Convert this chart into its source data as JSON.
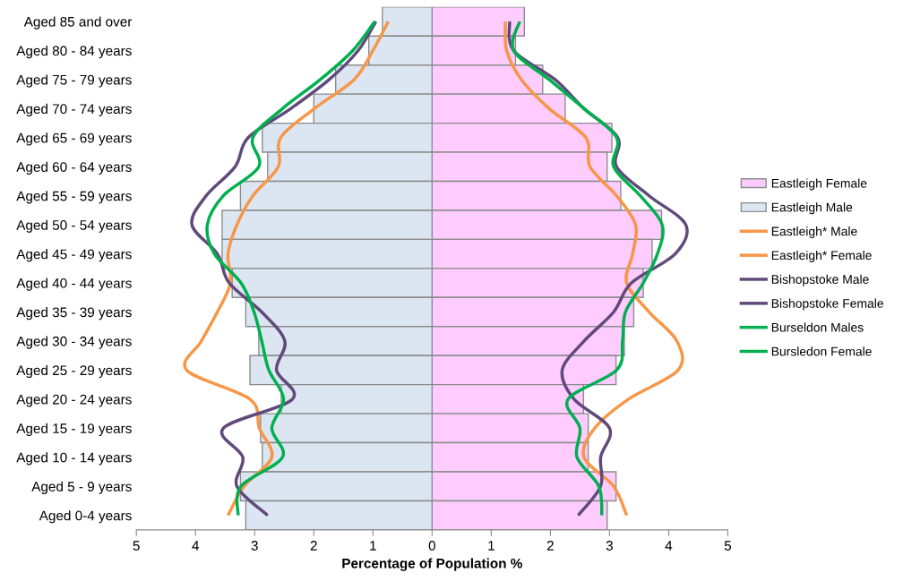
{
  "chart_data": {
    "type": "bar",
    "orientation": "horizontal",
    "xlabel": "Percentage of Population %",
    "categories": [
      "Aged 85 and over",
      "Aged 80 - 84 years",
      "Aged 75 - 79 years",
      "Aged 70 - 74 years",
      "Aged 65 - 69 years",
      "Aged 60 - 64 years",
      "Aged 55 - 59 years",
      "Aged 50 - 54 years",
      "Aged 45 - 49 years",
      "Aged 40 - 44 years",
      "Aged 35 - 39 years",
      "Aged 30 - 34 years",
      "Aged 25 - 29 years",
      "Aged 20 - 24 years",
      "Aged 15 - 19 years",
      "Aged 10 - 14 years",
      "Aged 5 - 9 years",
      "Aged 0-4 years"
    ],
    "xlim": [
      -5,
      5
    ],
    "xticks": [
      {
        "value": -5,
        "label": "5"
      },
      {
        "value": -4,
        "label": "4"
      },
      {
        "value": -3,
        "label": "3"
      },
      {
        "value": -2,
        "label": "2"
      },
      {
        "value": -1,
        "label": "1"
      },
      0,
      1,
      2,
      3,
      4,
      5
    ],
    "grid": false,
    "legend": "right",
    "stacked": true,
    "series": [
      {
        "name": "Eastleigh Female",
        "type": "bar",
        "color": "#ffccff",
        "values": [
          1.56,
          1.41,
          1.87,
          2.25,
          3.04,
          2.96,
          3.19,
          3.88,
          3.72,
          3.57,
          3.41,
          3.25,
          3.11,
          2.56,
          2.64,
          2.64,
          3.11,
          2.96
        ]
      },
      {
        "name": "Eastleigh Male",
        "type": "bar",
        "color": "#dce6f2",
        "values": [
          -0.84,
          -1.07,
          -1.63,
          -2.0,
          -2.87,
          -2.78,
          -3.24,
          -3.55,
          -3.55,
          -3.38,
          -3.15,
          -2.93,
          -3.08,
          -2.55,
          -2.9,
          -2.87,
          -3.24,
          -3.15
        ]
      },
      {
        "name": "Eastleigh* Male",
        "type": "line",
        "color": "#f79646",
        "values": [
          -0.74,
          -1.0,
          -1.32,
          -1.99,
          -2.56,
          -2.6,
          -3.03,
          -3.3,
          -3.45,
          -3.41,
          -3.63,
          -3.9,
          -4.15,
          -3.08,
          -2.92,
          -2.71,
          -3.18,
          -3.45
        ]
      },
      {
        "name": "Eastleigh* Female",
        "type": "line",
        "color": "#f79646",
        "values": [
          1.24,
          1.26,
          1.51,
          1.98,
          2.6,
          2.67,
          3.12,
          3.44,
          3.39,
          3.29,
          3.67,
          4.14,
          4.16,
          3.32,
          2.75,
          2.57,
          3.07,
          3.29
        ]
      },
      {
        "name": "Bishopstoke Male",
        "type": "line",
        "color": "#604a7b",
        "values": [
          -0.95,
          -1.25,
          -1.74,
          -2.39,
          -3.11,
          -3.33,
          -3.82,
          -4.06,
          -3.63,
          -3.43,
          -2.88,
          -2.49,
          -2.63,
          -2.36,
          -3.53,
          -3.2,
          -3.3,
          -2.78
        ]
      },
      {
        "name": "Bishopstoke Female",
        "type": "line",
        "color": "#604a7b",
        "values": [
          1.31,
          1.38,
          2.08,
          2.57,
          3.14,
          3.12,
          3.67,
          4.29,
          4.11,
          3.37,
          3.07,
          2.57,
          2.2,
          2.4,
          3.0,
          2.85,
          2.85,
          2.47
        ]
      },
      {
        "name": "Burseldon Males",
        "type": "line",
        "color": "#00b050",
        "values": [
          -0.97,
          -1.34,
          -1.89,
          -2.53,
          -3.03,
          -2.93,
          -3.53,
          -3.8,
          -3.68,
          -3.23,
          -3.01,
          -2.88,
          -2.76,
          -2.51,
          -2.71,
          -2.53,
          -3.23,
          -3.28
        ]
      },
      {
        "name": "Bursledon Female",
        "type": "line",
        "color": "#00b050",
        "values": [
          1.48,
          1.38,
          1.98,
          2.57,
          3.12,
          3.07,
          3.52,
          3.89,
          3.81,
          3.57,
          3.27,
          3.22,
          3.12,
          2.3,
          2.5,
          2.45,
          2.82,
          2.87
        ]
      }
    ]
  }
}
